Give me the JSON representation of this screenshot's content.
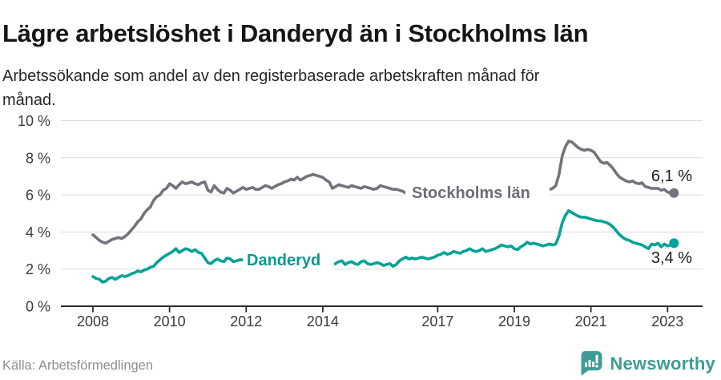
{
  "header": {
    "title": "Lägre arbetslöshet i Danderyd än i Stockholms län",
    "subtitle": "Arbetssökande som andel av den registerbaserade arbetskraften månad för månad."
  },
  "footer": {
    "source": "Källa: Arbetsförmedlingen",
    "brand_name": "Newsworthy",
    "brand_icon": "newsworthy-speech-bubble-barchart-icon",
    "brand_color": "#3f9c95"
  },
  "chart_data": {
    "type": "line",
    "x_unit": "month",
    "x_start": "2008-01",
    "x_end": "2023-03",
    "x_tick_years": [
      2008,
      2010,
      2012,
      2014,
      2017,
      2019,
      2021,
      2023
    ],
    "y_ticks": [
      0,
      2,
      4,
      6,
      8,
      10
    ],
    "y_tick_suffix": " %",
    "ylim": [
      0,
      10
    ],
    "grid": true,
    "legend_position": "inline-labels",
    "series": [
      {
        "name": "Stockholms län",
        "color": "#76717b",
        "end_value": 6.1,
        "end_label": "6,1 %",
        "values": [
          3.85,
          3.7,
          3.55,
          3.45,
          3.4,
          3.5,
          3.6,
          3.65,
          3.7,
          3.65,
          3.75,
          3.9,
          4.1,
          4.3,
          4.55,
          4.7,
          5.0,
          5.2,
          5.35,
          5.7,
          5.9,
          6.0,
          6.25,
          6.35,
          6.6,
          6.5,
          6.35,
          6.55,
          6.7,
          6.6,
          6.65,
          6.7,
          6.6,
          6.55,
          6.65,
          6.7,
          6.25,
          6.15,
          6.5,
          6.3,
          6.15,
          6.1,
          6.35,
          6.25,
          6.1,
          6.2,
          6.3,
          6.4,
          6.3,
          6.35,
          6.4,
          6.3,
          6.3,
          6.4,
          6.5,
          6.45,
          6.35,
          6.45,
          6.55,
          6.6,
          6.7,
          6.75,
          6.85,
          6.8,
          6.95,
          6.8,
          6.9,
          7.0,
          7.05,
          7.1,
          7.05,
          7.0,
          6.95,
          6.8,
          6.7,
          6.35,
          6.45,
          6.55,
          6.5,
          6.45,
          6.4,
          6.5,
          6.45,
          6.4,
          6.35,
          6.45,
          6.4,
          6.35,
          6.3,
          6.35,
          6.5,
          6.45,
          6.4,
          6.35,
          6.3,
          6.3,
          6.25,
          6.2,
          6.1,
          6.05,
          6.05,
          6.1,
          6.15,
          6.1,
          6.05,
          6.0,
          6.0,
          6.0,
          6.0,
          6.0,
          5.95,
          5.95,
          6.0,
          6.05,
          6.1,
          6.05,
          6.0,
          5.95,
          5.95,
          6.0,
          5.95,
          5.9,
          5.85,
          5.85,
          5.9,
          5.95,
          6.0,
          5.95,
          5.9,
          5.95,
          6.0,
          6.05,
          6.05,
          6.0,
          6.0,
          6.05,
          6.1,
          6.15,
          6.2,
          6.2,
          6.2,
          6.2,
          6.25,
          6.3,
          6.35,
          6.5,
          7.1,
          8.1,
          8.6,
          8.9,
          8.85,
          8.7,
          8.55,
          8.45,
          8.4,
          8.45,
          8.4,
          8.3,
          8.05,
          7.8,
          7.7,
          7.75,
          7.6,
          7.4,
          7.15,
          6.95,
          6.85,
          6.75,
          6.7,
          6.75,
          6.65,
          6.6,
          6.65,
          6.45,
          6.4,
          6.35,
          6.35,
          6.35,
          6.25,
          6.3,
          6.15,
          6.1,
          6.1
        ]
      },
      {
        "name": "Danderyd",
        "color": "#00a396",
        "end_value": 3.4,
        "end_label": "3,4 %",
        "values": [
          1.6,
          1.5,
          1.45,
          1.3,
          1.35,
          1.5,
          1.55,
          1.45,
          1.55,
          1.65,
          1.6,
          1.65,
          1.75,
          1.8,
          1.9,
          1.85,
          1.95,
          2.0,
          2.1,
          2.15,
          2.35,
          2.5,
          2.65,
          2.75,
          2.85,
          2.95,
          3.1,
          2.9,
          3.0,
          3.1,
          3.05,
          2.95,
          3.05,
          2.9,
          2.85,
          2.6,
          2.35,
          2.3,
          2.45,
          2.55,
          2.45,
          2.4,
          2.6,
          2.55,
          2.4,
          2.45,
          2.5,
          2.5,
          2.55,
          2.6,
          2.65,
          2.6,
          2.55,
          2.6,
          2.7,
          2.75,
          2.7,
          2.65,
          2.7,
          2.75,
          2.7,
          2.75,
          2.8,
          2.7,
          2.65,
          2.6,
          2.55,
          2.5,
          2.45,
          2.4,
          2.35,
          2.3,
          2.3,
          2.35,
          2.4,
          2.25,
          2.3,
          2.4,
          2.45,
          2.25,
          2.35,
          2.4,
          2.3,
          2.25,
          2.4,
          2.45,
          2.3,
          2.25,
          2.3,
          2.35,
          2.3,
          2.2,
          2.25,
          2.3,
          2.15,
          2.25,
          2.45,
          2.55,
          2.65,
          2.55,
          2.6,
          2.55,
          2.6,
          2.65,
          2.6,
          2.55,
          2.6,
          2.65,
          2.75,
          2.8,
          2.9,
          2.8,
          2.85,
          2.95,
          2.9,
          2.85,
          2.95,
          3.0,
          3.1,
          3.0,
          2.95,
          3.0,
          3.1,
          2.95,
          3.0,
          3.05,
          3.1,
          3.2,
          3.3,
          3.25,
          3.2,
          3.25,
          3.1,
          3.05,
          3.2,
          3.3,
          3.45,
          3.35,
          3.4,
          3.35,
          3.3,
          3.25,
          3.3,
          3.35,
          3.3,
          3.35,
          3.8,
          4.5,
          4.9,
          5.15,
          5.05,
          4.95,
          4.85,
          4.8,
          4.8,
          4.75,
          4.7,
          4.65,
          4.6,
          4.6,
          4.55,
          4.5,
          4.4,
          4.25,
          4.05,
          3.85,
          3.7,
          3.6,
          3.55,
          3.45,
          3.4,
          3.35,
          3.3,
          3.2,
          3.1,
          3.35,
          3.3,
          3.4,
          3.2,
          3.35,
          3.25,
          3.3,
          3.4
        ]
      }
    ]
  }
}
